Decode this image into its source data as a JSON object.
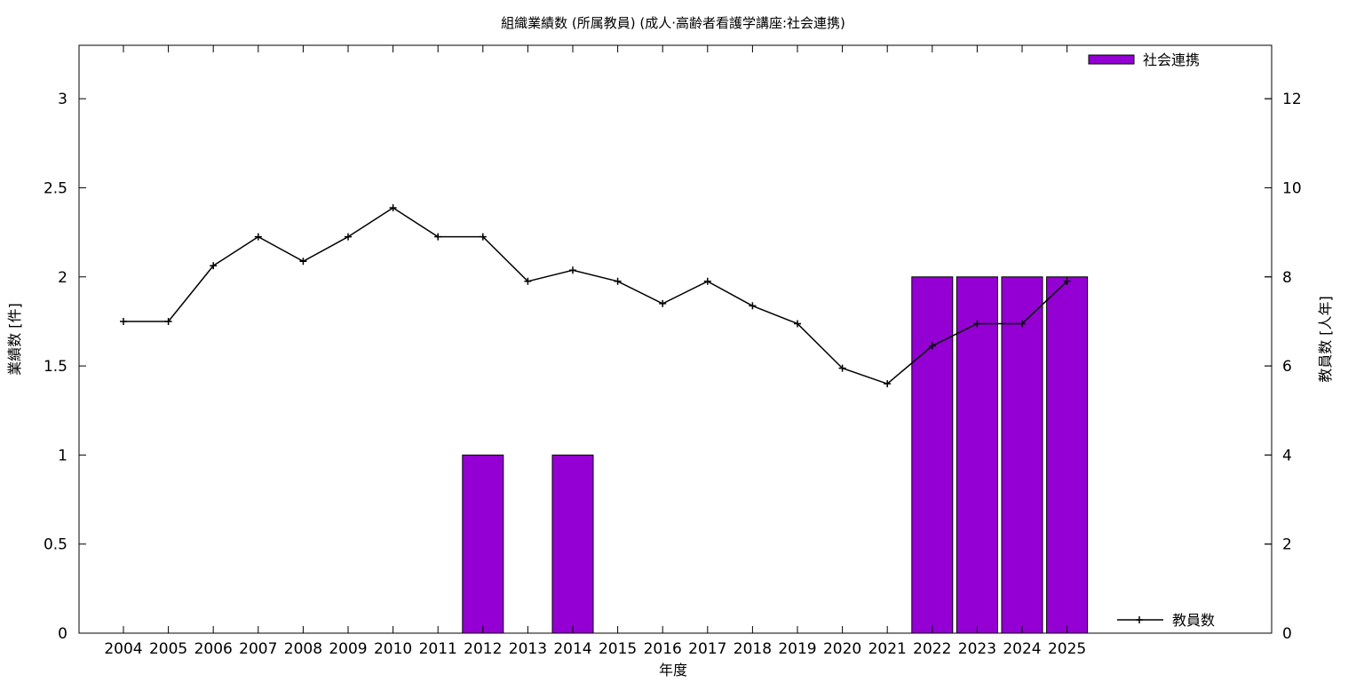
{
  "chart_data": {
    "type": "bar",
    "title": "組織業績数 (所属教員) (成人·高齢者看護学講座:社会連携)",
    "xlabel": "年度",
    "ylabel_left": "業績数 [件]",
    "ylabel_right": "教員数 [人年]",
    "categories": [
      "2004",
      "2005",
      "2006",
      "2007",
      "2008",
      "2009",
      "2010",
      "2011",
      "2012",
      "2013",
      "2014",
      "2015",
      "2016",
      "2017",
      "2018",
      "2019",
      "2020",
      "2021",
      "2022",
      "2023",
      "2024",
      "2025"
    ],
    "ylim_left": [
      0,
      3.3
    ],
    "yticks_left": [
      "0",
      "0.5",
      "1",
      "1.5",
      "2",
      "2.5",
      "3"
    ],
    "ylim_right": [
      0,
      13.2
    ],
    "yticks_right": [
      "0",
      "2",
      "4",
      "6",
      "8",
      "10",
      "12"
    ],
    "series": [
      {
        "name": "社会連携",
        "kind": "bar",
        "axis": "left",
        "color": "#9400d3",
        "values": [
          0,
          0,
          0,
          0,
          0,
          0,
          0,
          0,
          1,
          0,
          1,
          0,
          0,
          0,
          0,
          0,
          0,
          0,
          2,
          2,
          2,
          2
        ]
      },
      {
        "name": "教員数",
        "kind": "line",
        "axis": "right",
        "color": "#000000",
        "marker": "plus",
        "values": [
          7,
          7,
          8.25,
          8.9,
          8.35,
          8.9,
          9.55,
          8.9,
          8.9,
          7.9,
          8.15,
          7.9,
          7.4,
          7.9,
          7.35,
          6.95,
          5.95,
          5.6,
          6.45,
          6.95,
          6.95,
          7.9
        ]
      }
    ],
    "legend": {
      "bar_position": "top-right",
      "line_position": "bottom-right"
    },
    "grid": false
  }
}
